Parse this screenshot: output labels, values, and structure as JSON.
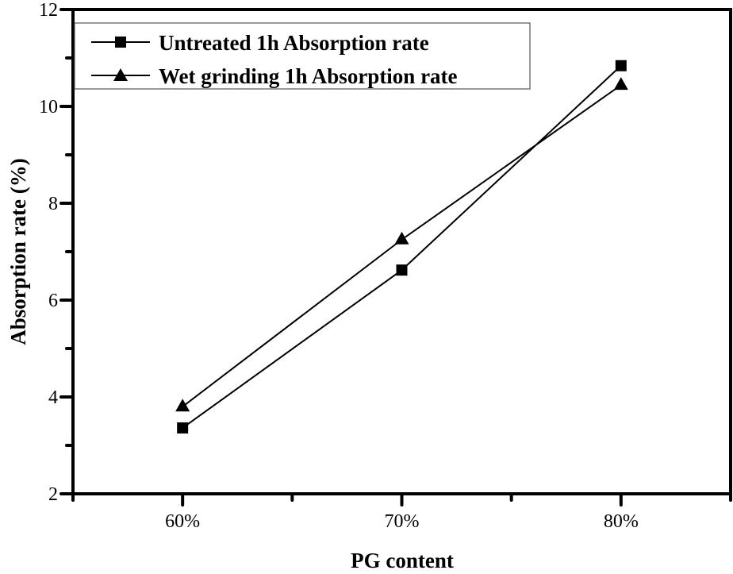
{
  "chart_data": {
    "type": "line",
    "title": "",
    "xlabel": "PG content",
    "ylabel": "Absorption rate (%)",
    "categories": [
      "60%",
      "70%",
      "80%"
    ],
    "x": [
      60,
      70,
      80
    ],
    "xlim": [
      55,
      85
    ],
    "ylim": [
      2,
      12
    ],
    "x_ticks": [
      60,
      70,
      80
    ],
    "x_tick_labels": [
      "60%",
      "70%",
      "80%"
    ],
    "x_minor_ticks": [
      55,
      65,
      75,
      85
    ],
    "y_ticks": [
      2,
      4,
      6,
      8,
      10,
      12
    ],
    "y_tick_labels": [
      "2",
      "4",
      "6",
      "8",
      "10",
      "12"
    ],
    "y_minor_ticks": [
      3,
      5,
      7,
      9,
      11
    ],
    "grid": false,
    "legend_position": "top-left",
    "series": [
      {
        "name": "Untreated 1h Absorption rate",
        "marker": "square",
        "color": "#000000",
        "values": [
          3.36,
          6.62,
          10.84
        ]
      },
      {
        "name": "Wet grinding 1h Absorption rate",
        "marker": "triangle",
        "color": "#000000",
        "values": [
          3.8,
          7.25,
          10.44
        ]
      }
    ]
  }
}
